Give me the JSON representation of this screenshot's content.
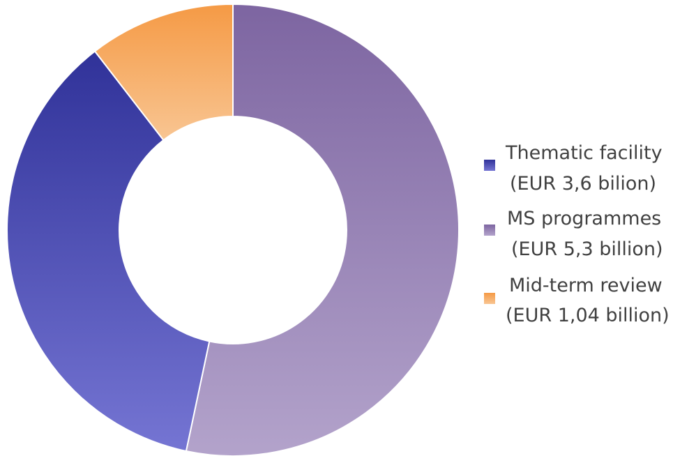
{
  "chart_data": {
    "type": "pie",
    "subtype": "donut",
    "title": "",
    "slices": [
      {
        "id": "ms",
        "label_line1": "MS programmes",
        "label_line2": "(EUR 5,3 billion)",
        "value": 5.3,
        "color_top": "#7d65a1",
        "color_bottom": "#b3a3cb"
      },
      {
        "id": "thematic",
        "label_line1": "Thematic facility",
        "label_line2": "(EUR 3,6 bilion)",
        "value": 3.6,
        "color_top": "#303299",
        "color_bottom": "#7575d3"
      },
      {
        "id": "midterm",
        "label_line1": "Mid-term review",
        "label_line2": "(EUR 1,04 billion)",
        "value": 1.04,
        "color_top": "#f59a45",
        "color_bottom": "#f8c592"
      }
    ],
    "legend_order": [
      "thematic",
      "ms",
      "midterm"
    ],
    "legend_position": "right",
    "start_angle_deg": 0,
    "direction": "clockwise"
  }
}
